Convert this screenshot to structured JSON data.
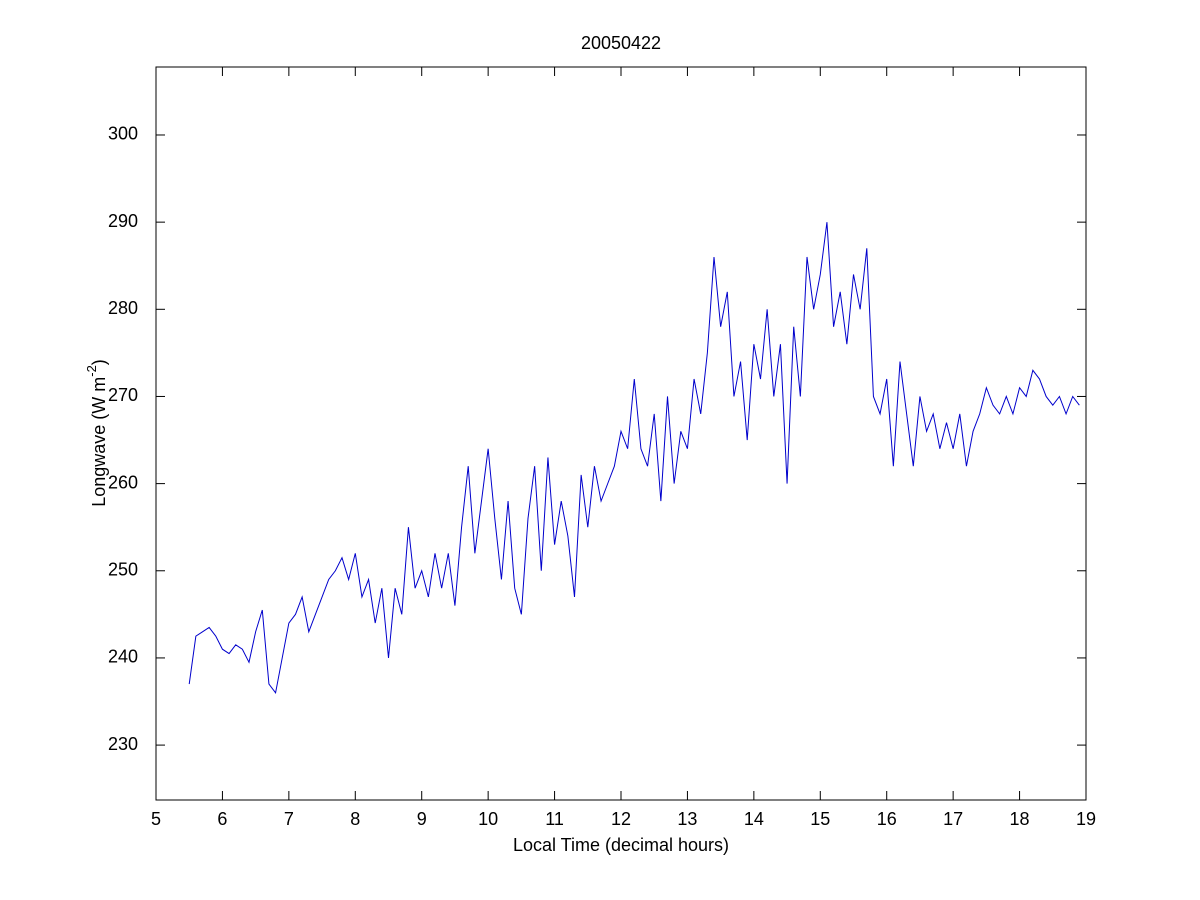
{
  "chart_data": {
    "type": "line",
    "title": "20050422",
    "x_label": "Local Time (decimal hours)",
    "y_label": {
      "text": "Longwave (W m",
      "superscript": "-2",
      "suffix": ")"
    },
    "xlim": [
      5,
      19
    ],
    "xticks": [
      5,
      6,
      7,
      8,
      9,
      10,
      11,
      12,
      13,
      14,
      15,
      16,
      17,
      18,
      19
    ],
    "ylim": [
      223.7,
      307.8
    ],
    "yticks": [
      230,
      240,
      250,
      260,
      270,
      280,
      290,
      300
    ],
    "grid": false,
    "series": [
      {
        "name": "Longwave",
        "color": "#0000cc",
        "x": [
          5.5,
          5.6,
          5.7,
          5.8,
          5.9,
          6.0,
          6.1,
          6.2,
          6.3,
          6.4,
          6.5,
          6.6,
          6.7,
          6.8,
          6.9,
          7.0,
          7.1,
          7.2,
          7.3,
          7.4,
          7.5,
          7.6,
          7.7,
          7.8,
          7.9,
          8.0,
          8.1,
          8.2,
          8.3,
          8.4,
          8.5,
          8.6,
          8.7,
          8.8,
          8.9,
          9.0,
          9.1,
          9.2,
          9.3,
          9.4,
          9.5,
          9.6,
          9.7,
          9.8,
          9.9,
          10.0,
          10.1,
          10.2,
          10.3,
          10.4,
          10.5,
          10.6,
          10.7,
          10.8,
          10.9,
          11.0,
          11.1,
          11.2,
          11.3,
          11.4,
          11.5,
          11.6,
          11.7,
          11.8,
          11.9,
          12.0,
          12.1,
          12.2,
          12.3,
          12.4,
          12.5,
          12.6,
          12.7,
          12.8,
          12.9,
          13.0,
          13.1,
          13.2,
          13.3,
          13.4,
          13.5,
          13.6,
          13.7,
          13.8,
          13.9,
          14.0,
          14.1,
          14.2,
          14.3,
          14.4,
          14.5,
          14.6,
          14.7,
          14.8,
          14.9,
          15.0,
          15.1,
          15.2,
          15.3,
          15.4,
          15.5,
          15.6,
          15.7,
          15.8,
          15.9,
          16.0,
          16.1,
          16.2,
          16.3,
          16.4,
          16.5,
          16.6,
          16.7,
          16.8,
          16.9,
          17.0,
          17.1,
          17.2,
          17.3,
          17.4,
          17.5,
          17.6,
          17.7,
          17.8,
          17.9,
          18.0,
          18.1,
          18.2,
          18.3,
          18.4,
          18.5,
          18.6,
          18.7,
          18.8,
          18.9
        ],
        "values": [
          237,
          242.5,
          243,
          243.5,
          242.5,
          241,
          240.5,
          241.5,
          241,
          239.5,
          243,
          245.5,
          237,
          236,
          240,
          244,
          245,
          247,
          243,
          245,
          247,
          249,
          250,
          251.5,
          249,
          252,
          247,
          249,
          244,
          248,
          240,
          248,
          245,
          255,
          248,
          250,
          247,
          252,
          248,
          252,
          246,
          255,
          262,
          252,
          258,
          264,
          256,
          249,
          258,
          248,
          245,
          256,
          262,
          250,
          263,
          253,
          258,
          254,
          247,
          261,
          255,
          262,
          258,
          260,
          262,
          266,
          264,
          272,
          264,
          262,
          268,
          258,
          270,
          260,
          266,
          264,
          272,
          268,
          275,
          286,
          278,
          282,
          270,
          274,
          265,
          276,
          272,
          280,
          270,
          276,
          260,
          278,
          270,
          286,
          280,
          284,
          290,
          278,
          282,
          276,
          284,
          280,
          287,
          270,
          268,
          272,
          262,
          274,
          268,
          262,
          270,
          266,
          268,
          264,
          267,
          264,
          268,
          262,
          266,
          268,
          271,
          269,
          268,
          270,
          268,
          271,
          270,
          273,
          272,
          270,
          269,
          270,
          268,
          270,
          269
        ]
      }
    ]
  }
}
